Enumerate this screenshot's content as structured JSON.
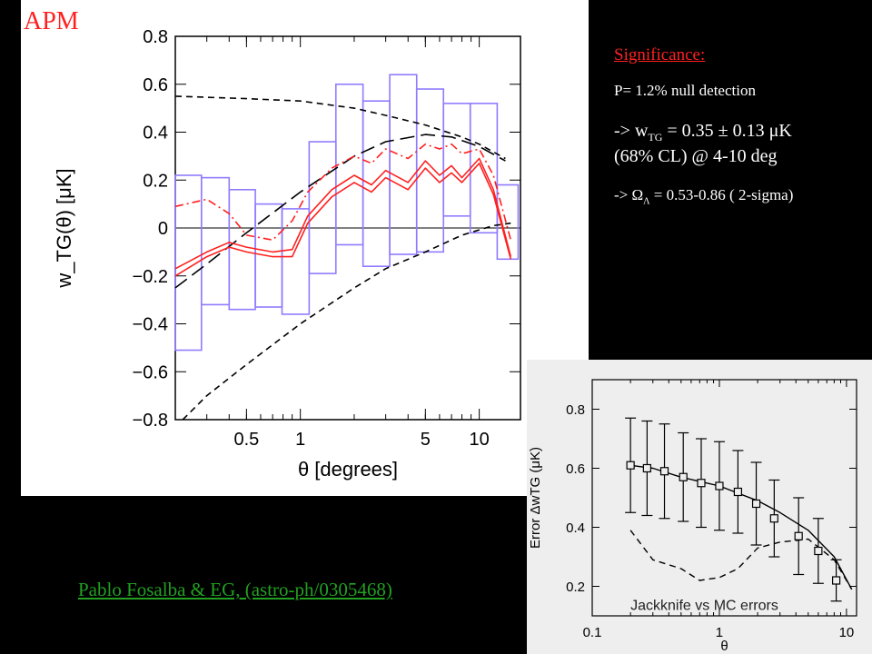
{
  "labels": {
    "apm": "APM",
    "citation": "Pablo Fosalba & EG, (astro-ph/0305468)"
  },
  "significance": {
    "title": "Significance:",
    "p_line": "P= 1.2% null detection",
    "w_prefix": "-> w",
    "w_sub": "TG",
    "w_rest": " = 0.35 ± 0.13 μK",
    "w_line2": "(68% CL) @ 4-10 deg",
    "omega_prefix": "-> Ω",
    "omega_sub": "Λ",
    "omega_rest": " = 0.53-0.86 ( 2-sigma)"
  },
  "colors": {
    "background": "#000000",
    "panel": "#ffffff",
    "inset_panel": "#eeeeee",
    "red_text": "#ff2020",
    "boxes": "#8f7cff",
    "data_curve": "#ff2020",
    "citation": "#22a022"
  },
  "chart_data": [
    {
      "type": "line",
      "xlabel": "θ  [degrees]",
      "ylabel": "w_TG(θ)  [μK]",
      "xscale": "log",
      "xlim": [
        0.2,
        17
      ],
      "ylim": [
        -0.8,
        0.8
      ],
      "xticks": [
        0.5,
        1,
        5,
        10
      ],
      "xtick_labels": [
        "0.5",
        "1",
        "5",
        "10"
      ],
      "yticks": [
        -0.8,
        -0.6,
        -0.4,
        -0.2,
        0,
        0.2,
        0.4,
        0.6,
        0.8
      ],
      "ytick_labels": [
        "−0.8",
        "−0.6",
        "−0.4",
        "−0.2",
        "0",
        "0.2",
        "0.4",
        "0.6",
        "0.8"
      ],
      "zero_line": true,
      "error_boxes": [
        {
          "x": [
            0.2,
            0.28
          ],
          "y": [
            -0.51,
            0.22
          ]
        },
        {
          "x": [
            0.28,
            0.4
          ],
          "y": [
            -0.32,
            0.21
          ]
        },
        {
          "x": [
            0.4,
            0.56
          ],
          "y": [
            -0.34,
            0.16
          ]
        },
        {
          "x": [
            0.56,
            0.79
          ],
          "y": [
            -0.33,
            0.1
          ]
        },
        {
          "x": [
            0.79,
            1.12
          ],
          "y": [
            -0.36,
            0.08
          ]
        },
        {
          "x": [
            1.12,
            1.58
          ],
          "y": [
            -0.19,
            0.36
          ]
        },
        {
          "x": [
            1.58,
            2.24
          ],
          "y": [
            -0.07,
            0.6
          ]
        },
        {
          "x": [
            2.24,
            3.16
          ],
          "y": [
            -0.16,
            0.53
          ]
        },
        {
          "x": [
            3.16,
            4.47
          ],
          "y": [
            -0.11,
            0.64
          ]
        },
        {
          "x": [
            4.47,
            6.31
          ],
          "y": [
            -0.1,
            0.58
          ]
        },
        {
          "x": [
            6.31,
            8.91
          ],
          "y": [
            0.05,
            0.52
          ]
        },
        {
          "x": [
            8.91,
            12.6
          ],
          "y": [
            -0.02,
            0.52
          ]
        },
        {
          "x": [
            12.6,
            16.5
          ],
          "y": [
            -0.13,
            0.18
          ]
        }
      ],
      "series": [
        {
          "style": "dashed",
          "color": "#000000",
          "x": [
            0.2,
            0.5,
            1,
            2,
            3,
            5,
            8,
            10,
            14
          ],
          "y": [
            0.55,
            0.54,
            0.53,
            0.5,
            0.47,
            0.43,
            0.38,
            0.35,
            0.29
          ]
        },
        {
          "style": "longdash",
          "color": "#000000",
          "x": [
            0.2,
            0.3,
            0.5,
            1,
            2,
            3,
            5,
            7,
            10,
            14
          ],
          "y": [
            -0.25,
            -0.15,
            -0.02,
            0.15,
            0.3,
            0.36,
            0.39,
            0.38,
            0.34,
            0.28
          ]
        },
        {
          "style": "dashed",
          "color": "#000000",
          "x": [
            0.22,
            0.3,
            0.5,
            1,
            2,
            3,
            5,
            8,
            12,
            15
          ],
          "y": [
            -0.8,
            -0.7,
            -0.57,
            -0.4,
            -0.25,
            -0.17,
            -0.1,
            -0.03,
            0.01,
            0.02
          ]
        },
        {
          "style": "dashdot",
          "color": "#ff2020",
          "x": [
            0.2,
            0.3,
            0.4,
            0.5,
            0.7,
            0.9,
            1.1,
            1.5,
            2,
            2.5,
            3,
            4,
            5,
            6,
            7,
            8,
            10,
            12,
            15
          ],
          "y": [
            0.09,
            0.12,
            0.06,
            -0.03,
            -0.05,
            0.03,
            0.15,
            0.25,
            0.3,
            0.27,
            0.33,
            0.29,
            0.35,
            0.33,
            0.35,
            0.31,
            0.33,
            0.22,
            -0.05
          ]
        },
        {
          "style": "solid",
          "color": "#ff2020",
          "x": [
            0.2,
            0.3,
            0.4,
            0.5,
            0.7,
            0.9,
            1.1,
            1.5,
            2,
            2.5,
            3,
            4,
            5,
            6,
            7,
            8,
            10,
            12,
            15
          ],
          "y": [
            -0.17,
            -0.1,
            -0.06,
            -0.08,
            -0.1,
            -0.09,
            0.05,
            0.16,
            0.22,
            0.18,
            0.24,
            0.19,
            0.28,
            0.22,
            0.26,
            0.21,
            0.29,
            0.16,
            -0.12
          ]
        },
        {
          "style": "solid",
          "color": "#ff2020",
          "x": [
            0.2,
            0.3,
            0.4,
            0.5,
            0.7,
            0.9,
            1.1,
            1.5,
            2,
            2.5,
            3,
            4,
            5,
            6,
            7,
            8,
            10,
            12,
            15
          ],
          "y": [
            -0.2,
            -0.12,
            -0.08,
            -0.1,
            -0.12,
            -0.12,
            0.02,
            0.13,
            0.19,
            0.15,
            0.21,
            0.16,
            0.25,
            0.19,
            0.23,
            0.19,
            0.27,
            0.14,
            -0.13
          ]
        }
      ]
    },
    {
      "type": "line",
      "xlabel": "θ",
      "ylabel": "Error ΔwTG (μK)",
      "xscale": "log",
      "xlim": [
        0.1,
        12
      ],
      "ylim": [
        0.1,
        0.9
      ],
      "xticks": [
        0.1,
        1,
        10
      ],
      "xtick_labels": [
        "0.1",
        "1",
        "10"
      ],
      "yticks": [
        0.2,
        0.4,
        0.6,
        0.8
      ],
      "ytick_labels": [
        "0.2",
        "0.4",
        "0.6",
        "0.8"
      ],
      "annotation": "Jackknife vs MC errors",
      "points": [
        {
          "x": 0.2,
          "y": 0.61,
          "err": 0.16
        },
        {
          "x": 0.27,
          "y": 0.6,
          "err": 0.16
        },
        {
          "x": 0.37,
          "y": 0.59,
          "err": 0.16
        },
        {
          "x": 0.52,
          "y": 0.57,
          "err": 0.15
        },
        {
          "x": 0.72,
          "y": 0.55,
          "err": 0.15
        },
        {
          "x": 1.0,
          "y": 0.54,
          "err": 0.15
        },
        {
          "x": 1.4,
          "y": 0.52,
          "err": 0.14
        },
        {
          "x": 1.95,
          "y": 0.48,
          "err": 0.14
        },
        {
          "x": 2.7,
          "y": 0.43,
          "err": 0.13
        },
        {
          "x": 4.2,
          "y": 0.37,
          "err": 0.13
        },
        {
          "x": 6.0,
          "y": 0.32,
          "err": 0.11
        },
        {
          "x": 8.3,
          "y": 0.22,
          "err": 0.07
        }
      ],
      "series": [
        {
          "style": "solid",
          "color": "#000000",
          "x": [
            0.2,
            0.3,
            0.5,
            1,
            2,
            3,
            5,
            8,
            11
          ],
          "y": [
            0.61,
            0.6,
            0.57,
            0.54,
            0.49,
            0.45,
            0.39,
            0.3,
            0.19
          ]
        },
        {
          "style": "dashed",
          "color": "#000000",
          "x": [
            0.2,
            0.3,
            0.5,
            0.7,
            1,
            1.4,
            2,
            3,
            5,
            8,
            11
          ],
          "y": [
            0.39,
            0.29,
            0.26,
            0.22,
            0.23,
            0.26,
            0.33,
            0.35,
            0.36,
            0.29,
            0.19
          ]
        }
      ]
    }
  ]
}
